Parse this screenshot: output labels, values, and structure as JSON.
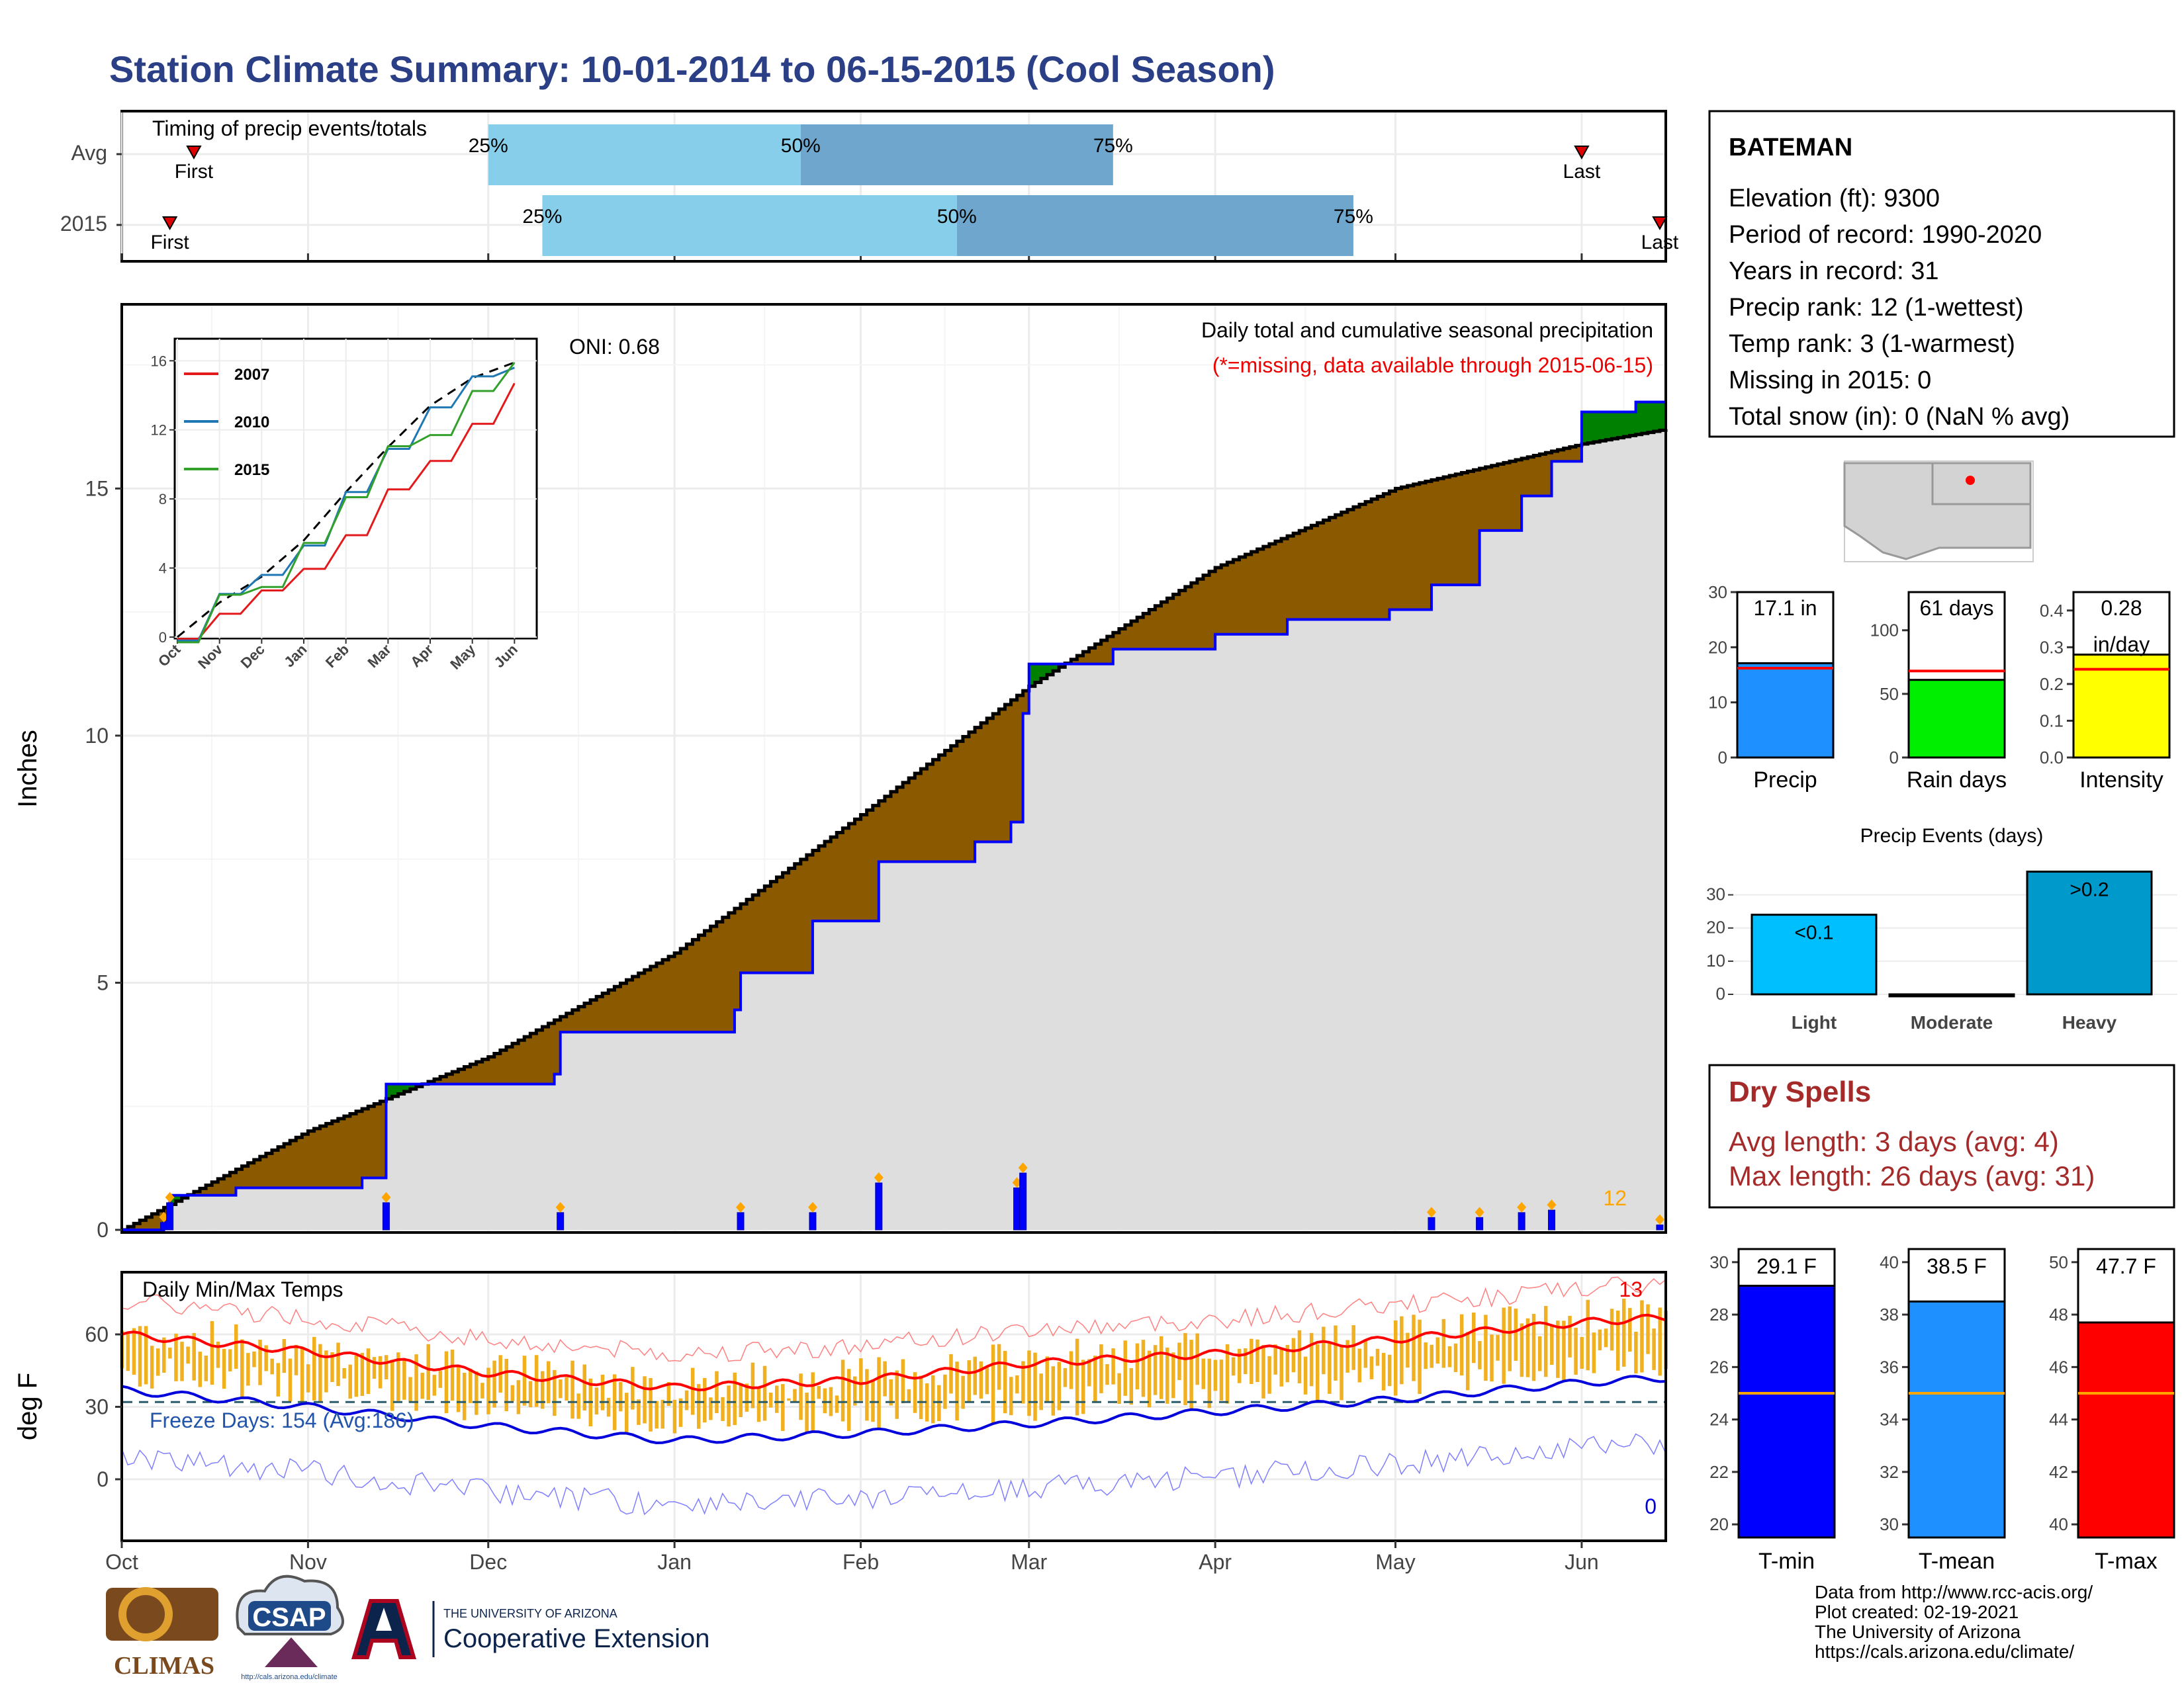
{
  "title": "Station Climate Summary: 10-01-2014 to 06-15-2015 (Cool Season)",
  "timing": {
    "title": "Timing of precip events/totals",
    "rows": [
      {
        "label": "Avg",
        "first_label": "First",
        "last_label": "Last",
        "p25": "25%",
        "p50": "50%",
        "p75": "75%",
        "first": "2014-10-13",
        "p25_date": "2014-12-01",
        "p50_date": "2015-01-22",
        "p75_date": "2015-03-15",
        "last": "2015-06-01"
      },
      {
        "label": "2015",
        "first_label": "First",
        "last_label": "Last",
        "p25": "25%",
        "p50": "50%",
        "p75": "75%",
        "first": "2014-10-09",
        "p25_date": "2014-12-10",
        "p50_date": "2015-02-17",
        "p75_date": "2015-04-24",
        "last": "2015-06-14"
      }
    ],
    "colors": {
      "lower": "#87ceeb",
      "upper": "#6fa6cd",
      "marker": "#dd0000"
    }
  },
  "station": {
    "name": "BATEMAN",
    "lines": [
      "Elevation (ft): 9300",
      "Period of record: 1990-2020",
      "Years in record: 31",
      "Precip rank: 12 (1-wettest)",
      "Temp rank: 3 (1-warmest)",
      "Missing in 2015: 0",
      "Total snow (in): 0 (NaN % avg)"
    ]
  },
  "precip_panel": {
    "ylabel": "Inches",
    "oni": "ONI: 0.68",
    "caption": "Daily total and cumulative seasonal precipitation",
    "missing_note": "(*=missing, data available through 2015-06-15)",
    "count_label": "12",
    "y_ticks": [
      "0",
      "5",
      "10",
      "15"
    ],
    "colors": {
      "above": "#008000",
      "below": "#8b5a00",
      "daily": "#0000ff",
      "avgline": "#000000",
      "fill": "#dedede",
      "marker": "#ffa500"
    }
  },
  "inset": {
    "y_ticks": [
      "0",
      "4",
      "8",
      "12",
      "16"
    ],
    "x_ticks": [
      "Oct",
      "Nov",
      "Dec",
      "Jan",
      "Feb",
      "Mar",
      "Apr",
      "May",
      "Jun"
    ],
    "legend": [
      {
        "name": "2007",
        "color": "#e31a1c"
      },
      {
        "name": "2010",
        "color": "#1f78b4"
      },
      {
        "name": "2015",
        "color": "#33a02c"
      }
    ]
  },
  "temp_panel": {
    "ylabel": "deg F",
    "title": "Daily Min/Max Temps",
    "freeze_label": "Freeze Days: 154 (Avg:186)",
    "max_count": "13",
    "min_count": "0",
    "y_ticks": [
      "0",
      "30",
      "60"
    ],
    "colors": {
      "bar": "#f0b020",
      "tmax": "#ff0000",
      "tmin": "#0000dd",
      "freeze": "#2a5d6a"
    }
  },
  "x_months": [
    "Oct",
    "Nov",
    "Dec",
    "Jan",
    "Feb",
    "Mar",
    "Apr",
    "May",
    "Jun"
  ],
  "side_bars": {
    "items": [
      {
        "label": "Precip",
        "value_label": "17.1 in",
        "value": 17.1,
        "avg": 16.2,
        "ymax": 30,
        "ticks": [
          "0",
          "10",
          "20",
          "30"
        ],
        "color": "#1e90ff"
      },
      {
        "label": "Rain days",
        "value_label": "61 days",
        "value": 61,
        "avg": 68,
        "ymax": 130,
        "ticks": [
          "0",
          "50",
          "100"
        ],
        "color": "#00ee00"
      },
      {
        "label": "Intensity",
        "value_label": "0.28",
        "value_label2": "in/day",
        "value": 0.28,
        "avg": 0.24,
        "ymax": 0.45,
        "ticks": [
          "0.0",
          "0.1",
          "0.2",
          "0.3",
          "0.4"
        ],
        "color": "#ffff00"
      }
    ]
  },
  "events": {
    "title": "Precip Events (days)",
    "categories": [
      "Light",
      "Moderate",
      "Heavy"
    ],
    "values": [
      24,
      0,
      37
    ],
    "labels": [
      "<0.1",
      "",
      ">0.2"
    ],
    "ticks": [
      "0",
      "10",
      "20",
      "30"
    ],
    "colors": [
      "#00bfff",
      "#009acd",
      "#0099cc"
    ]
  },
  "dry_spells": {
    "title": "Dry Spells",
    "avg": "Avg length: 3 days (avg: 4)",
    "max": "Max length: 26 days (avg: 31)"
  },
  "temp_bars": {
    "items": [
      {
        "label": "T-min",
        "value_label": "29.1 F",
        "value": 29.1,
        "avg": 25.0,
        "ymin": 19.5,
        "ymax": 30.5,
        "ticks": [
          "20",
          "22",
          "24",
          "26",
          "28",
          "30"
        ],
        "color": "#0000ff"
      },
      {
        "label": "T-mean",
        "value_label": "38.5 F",
        "value": 38.5,
        "avg": 35.0,
        "ymin": 29.5,
        "ymax": 40.5,
        "ticks": [
          "30",
          "32",
          "34",
          "36",
          "38",
          "40"
        ],
        "color": "#1e90ff"
      },
      {
        "label": "T-max",
        "value_label": "47.7 F",
        "value": 47.7,
        "avg": 45.0,
        "ymin": 39.5,
        "ymax": 50.5,
        "ticks": [
          "40",
          "42",
          "44",
          "46",
          "48",
          "50"
        ],
        "color": "#ff0000"
      }
    ]
  },
  "footer": {
    "lines": [
      "Data from http://www.rcc-acis.org/",
      "Plot created: 02-19-2021",
      "The University of Arizona",
      "https://cals.arizona.edu/climate/"
    ],
    "logo_climas": "CLIMAS",
    "logo_csap": "CSAP",
    "csap_url": "http://cals.arizona.edu/climate",
    "ua_small": "THE UNIVERSITY OF ARIZONA",
    "ua_big": "Cooperative Extension"
  },
  "chart_data": {
    "type": "line",
    "title": "Station Climate Summary: 10-01-2014 to 06-15-2015 (Cool Season)",
    "ylabel": "Inches",
    "ylim": [
      0,
      18.7
    ],
    "series": [
      {
        "name": "Average cumulative",
        "x": [
          "2014-10-01",
          "2014-11-01",
          "2014-12-01",
          "2015-01-01",
          "2015-02-01",
          "2015-03-01",
          "2015-04-01",
          "2015-05-01",
          "2015-06-01",
          "2015-06-15"
        ],
        "values": [
          0,
          2.0,
          3.5,
          5.6,
          8.4,
          11.0,
          13.4,
          15.0,
          15.9,
          16.2
        ]
      },
      {
        "name": "2015 cumulative",
        "x": [
          "2014-10-01",
          "2014-10-08",
          "2014-10-09",
          "2014-10-20",
          "2014-11-10",
          "2014-11-14",
          "2014-12-12",
          "2014-12-13",
          "2015-01-11",
          "2015-01-12",
          "2015-01-24",
          "2015-02-04",
          "2015-02-20",
          "2015-02-26",
          "2015-02-28",
          "2015-03-01",
          "2015-03-15",
          "2015-04-01",
          "2015-04-13",
          "2015-04-30",
          "2015-05-07",
          "2015-05-15",
          "2015-05-22",
          "2015-05-27",
          "2015-06-01",
          "2015-06-10",
          "2015-06-15"
        ],
        "values": [
          0,
          0.15,
          0.7,
          0.85,
          1.05,
          2.95,
          3.15,
          4.0,
          4.45,
          5.2,
          6.25,
          7.45,
          7.85,
          8.25,
          10.45,
          11.45,
          11.75,
          12.05,
          12.35,
          12.55,
          13.05,
          14.15,
          14.85,
          15.55,
          16.55,
          16.75,
          17.1
        ]
      }
    ],
    "daily_precip": {
      "dates": [
        "2014-10-08",
        "2014-10-09",
        "2014-11-14",
        "2014-12-13",
        "2015-01-12",
        "2015-01-24",
        "2015-02-04",
        "2015-02-27",
        "2015-02-28",
        "2015-05-07",
        "2015-05-15",
        "2015-05-22",
        "2015-05-27",
        "2015-06-14"
      ],
      "values": [
        0.15,
        0.55,
        0.55,
        0.35,
        0.35,
        0.35,
        0.95,
        0.85,
        1.15,
        0.25,
        0.25,
        0.35,
        0.4,
        0.1
      ]
    },
    "inset_cumulative": {
      "x": [
        "Oct",
        "Nov",
        "Dec",
        "Jan",
        "Feb",
        "Mar",
        "Apr",
        "May",
        "Jun"
      ],
      "series": [
        {
          "name": "2007",
          "values": [
            0,
            1.2,
            2.8,
            3.8,
            6.0,
            8.4,
            10.3,
            12.2,
            14.8
          ]
        },
        {
          "name": "2010",
          "values": [
            0,
            2.2,
            3.8,
            5.0,
            8.6,
            10.6,
            13.5,
            14.8,
            15.8
          ]
        },
        {
          "name": "2015",
          "values": [
            0,
            2.0,
            3.2,
            5.0,
            8.4,
            10.6,
            12.0,
            13.8,
            16.2
          ]
        }
      ]
    },
    "temperature": {
      "tmax_avg": {
        "x": [
          "2014-10-01",
          "2014-11-01",
          "2014-12-01",
          "2015-01-01",
          "2015-02-01",
          "2015-03-01",
          "2015-04-01",
          "2015-05-01",
          "2015-06-01",
          "2015-06-15"
        ],
        "values": [
          60,
          53,
          44,
          38,
          41,
          48,
          52,
          58,
          65,
          67
        ]
      },
      "tmin_avg": {
        "x": [
          "2014-10-01",
          "2014-11-01",
          "2014-12-01",
          "2015-01-01",
          "2015-02-01",
          "2015-03-01",
          "2015-04-01",
          "2015-05-01",
          "2015-06-01",
          "2015-06-15"
        ],
        "values": [
          37,
          30,
          22,
          16,
          19,
          23,
          28,
          33,
          40,
          42
        ]
      },
      "freeze_threshold": 32
    }
  }
}
